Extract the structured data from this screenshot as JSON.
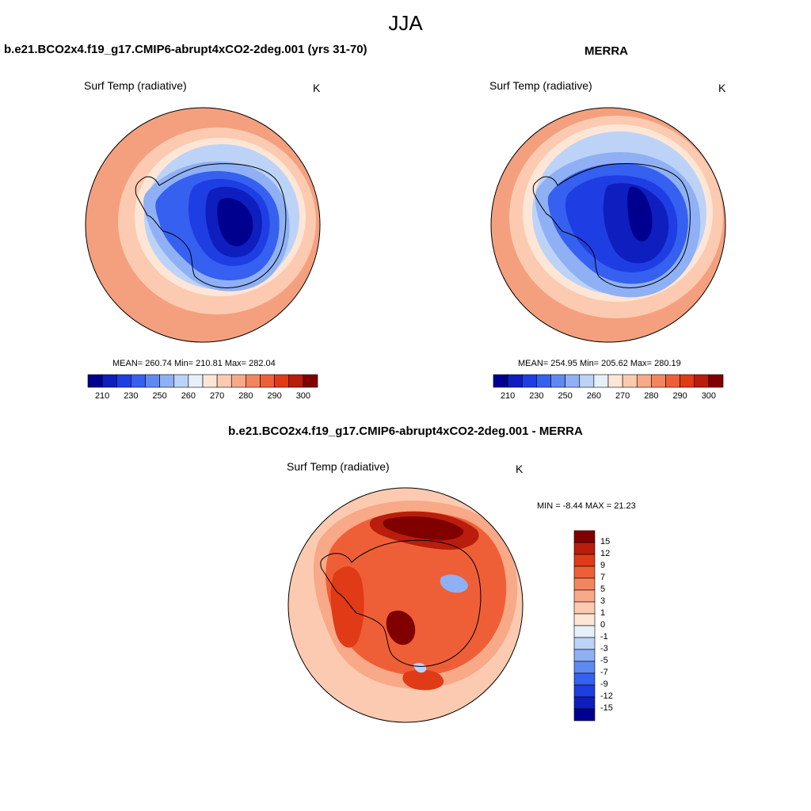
{
  "figure": {
    "title": "JJA"
  },
  "panels": [
    {
      "title": "b.e21.BCO2x4.f19_g17.CMIP6-abrupt4xCO2-2deg.001 (yrs 31-70)",
      "variable": "Surf Temp (radiative)",
      "units": "K",
      "stats": "MEAN= 260.74  Min= 210.81  Max= 282.04"
    },
    {
      "title": "MERRA",
      "variable": "Surf Temp (radiative)",
      "units": "K",
      "stats": "MEAN= 254.95  Min= 205.62  Max= 280.19"
    },
    {
      "title": "b.e21.BCO2x4.f19_g17.CMIP6-abrupt4xCO2-2deg.001 - MERRA",
      "variable": "Surf Temp (radiative)",
      "units": "K",
      "stats": "MIN =  -8.44 MAX =  21.23"
    }
  ],
  "colorbar_abs": {
    "colors": [
      "#00008f",
      "#0f1ebe",
      "#1e3ee3",
      "#3560f0",
      "#5f8af2",
      "#8fb0f4",
      "#bcd3f7",
      "#e6f0fb",
      "#fde6d6",
      "#fccab0",
      "#f8a987",
      "#f4865f",
      "#ef5f37",
      "#e03a17",
      "#b91d0b",
      "#800000"
    ],
    "tick_labels": [
      "210",
      "230",
      "250",
      "260",
      "270",
      "280",
      "290",
      "300"
    ]
  },
  "colorbar_diff": {
    "colors": [
      "#00008f",
      "#0f1ebe",
      "#1e3ee3",
      "#3560f0",
      "#5f8af2",
      "#8fb0f4",
      "#bcd3f7",
      "#e6f0fb",
      "#fde6d6",
      "#fccab0",
      "#f8a987",
      "#f4865f",
      "#ef5f37",
      "#e03a17",
      "#b91d0b",
      "#800000"
    ],
    "tick_labels": [
      "15",
      "12",
      "9",
      "7",
      "5",
      "3",
      "1",
      "0",
      "-1",
      "-3",
      "-5",
      "-7",
      "-9",
      "-12",
      "-15"
    ]
  },
  "map_colors": {
    "warm_outer": "#f4a07e",
    "warm_mid": "#fccab0",
    "pale": "#fde6d6",
    "cold_edge": "#bcd3f7",
    "cold_1": "#8fb0f4",
    "cold_2": "#3560f0",
    "cold_3": "#1e3ee3",
    "cold_4": "#0f1ebe",
    "cold_5": "#00008f",
    "diff_bg": "#fccab0",
    "diff_1": "#f8a987",
    "diff_2": "#ef5f37",
    "diff_3": "#e03a17",
    "diff_4": "#b91d0b",
    "diff_5": "#800000",
    "diff_neg": "#8fb0f4"
  }
}
